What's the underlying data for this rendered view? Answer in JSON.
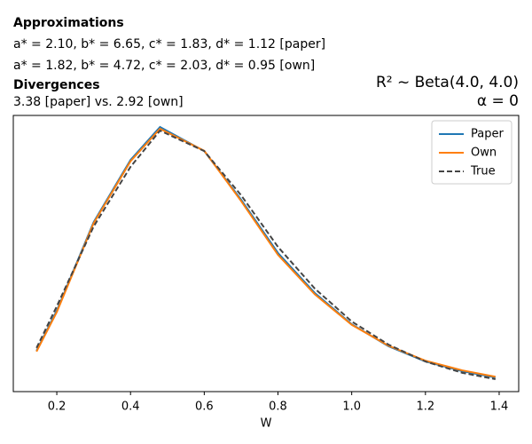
{
  "chart_data": {
    "type": "line",
    "left_title": [
      "Approximations",
      "a* = 2.10, b* = 6.65, c* = 1.83, d* = 1.12 [paper]",
      "a* = 1.82, b* = 4.72, c* = 2.03, d* = 0.95 [own]",
      "Divergences",
      "3.38 [paper] vs. 2.92 [own]"
    ],
    "right_title": [
      "R² ~  Beta(4.0, 4.0)",
      "α = 0"
    ],
    "xlabel": "W",
    "x": [
      0.145,
      0.2,
      0.3,
      0.4,
      0.48,
      0.6,
      0.7,
      0.8,
      0.9,
      1.0,
      1.1,
      1.2,
      1.3,
      1.39
    ],
    "series": [
      {
        "name": "Paper",
        "color": "#1f77b4",
        "dashed": false,
        "values": [
          0.148,
          0.293,
          0.614,
          0.839,
          0.958,
          0.871,
          0.695,
          0.502,
          0.357,
          0.244,
          0.164,
          0.109,
          0.074,
          0.051
        ]
      },
      {
        "name": "Own",
        "color": "#ff7f0e",
        "dashed": false,
        "values": [
          0.145,
          0.288,
          0.61,
          0.834,
          0.952,
          0.872,
          0.69,
          0.495,
          0.352,
          0.242,
          0.166,
          0.112,
          0.077,
          0.054
        ]
      },
      {
        "name": "True",
        "color": "#444444",
        "dashed": true,
        "values": [
          0.158,
          0.309,
          0.598,
          0.814,
          0.945,
          0.871,
          0.711,
          0.524,
          0.373,
          0.254,
          0.17,
          0.109,
          0.068,
          0.045
        ]
      }
    ],
    "xlim": [
      0.082,
      1.453
    ],
    "ylim": [
      0,
      1
    ],
    "xticks": [
      0.2,
      0.4,
      0.6,
      0.8,
      {
        "value": 1.0,
        "label": "1.0"
      },
      1.2,
      1.4
    ],
    "legend": "upper right"
  }
}
